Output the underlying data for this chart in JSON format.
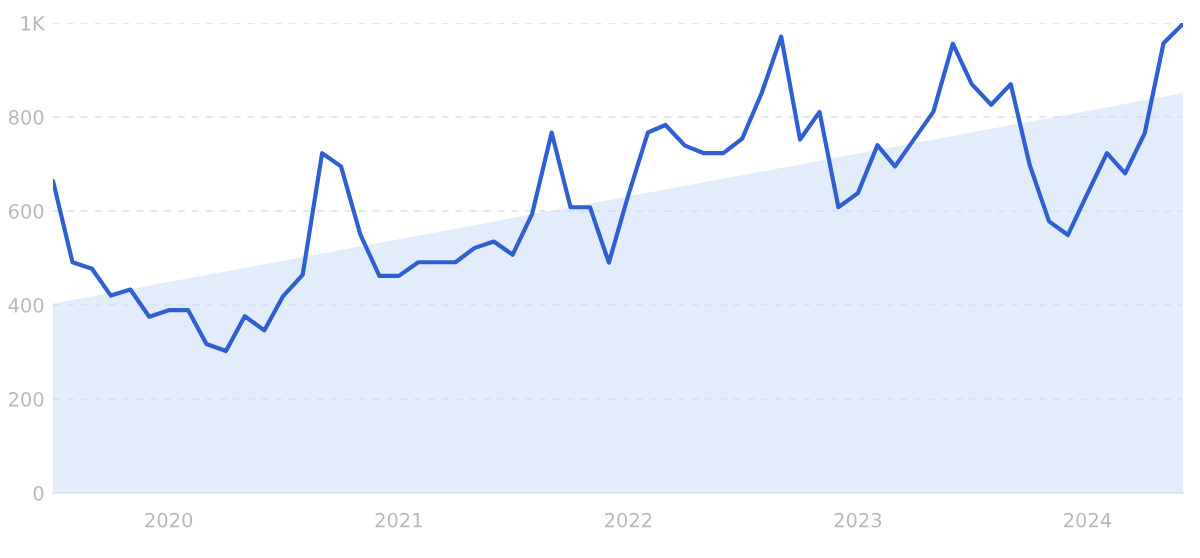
{
  "chart_data": {
    "type": "line",
    "x": [
      "2019-07",
      "2019-08",
      "2019-09",
      "2019-10",
      "2019-11",
      "2019-12",
      "2020-01",
      "2020-02",
      "2020-03",
      "2020-04",
      "2020-05",
      "2020-06",
      "2020-07",
      "2020-08",
      "2020-09",
      "2020-10",
      "2020-11",
      "2020-12",
      "2021-01",
      "2021-02",
      "2021-03",
      "2021-04",
      "2021-05",
      "2021-06",
      "2021-07",
      "2021-08",
      "2021-09",
      "2021-10",
      "2021-11",
      "2021-12",
      "2022-01",
      "2022-02",
      "2022-03",
      "2022-04",
      "2022-05",
      "2022-06",
      "2022-07",
      "2022-08",
      "2022-09",
      "2022-10",
      "2022-11",
      "2022-12",
      "2023-01",
      "2023-02",
      "2023-03",
      "2023-04",
      "2023-05",
      "2023-06",
      "2023-07",
      "2023-08",
      "2023-09",
      "2023-10",
      "2023-11",
      "2023-12",
      "2024-01",
      "2024-02",
      "2024-03",
      "2024-04",
      "2024-05",
      "2024-06"
    ],
    "series": [
      {
        "type": "area",
        "color": "#dde9fa",
        "x": [
          "2019-07",
          "2024-06"
        ],
        "values": [
          403,
          851
        ]
      },
      {
        "color": "#2f5fd1",
        "values": [
          664,
          491,
          477,
          420,
          433,
          375,
          389,
          389,
          317,
          302,
          376,
          346,
          419,
          464,
          723,
          695,
          549,
          462,
          462,
          491,
          491,
          491,
          521,
          535,
          507,
          594,
          767,
          608,
          608,
          490,
          634,
          767,
          783,
          739,
          723,
          723,
          754,
          851,
          971,
          752,
          811,
          608,
          638,
          740,
          695,
          754,
          811,
          956,
          870,
          826,
          870,
          699,
          578,
          549,
          637,
          723,
          680,
          765,
          957,
          998
        ]
      }
    ],
    "xlim": [
      "2019-07",
      "2024-06"
    ],
    "xticks": [
      "2020",
      "2021",
      "2022",
      "2023",
      "2024"
    ],
    "ylim": [
      0,
      1000
    ],
    "yticks": [
      0,
      200,
      400,
      600,
      800,
      {
        "value": 1000,
        "label": "1K"
      }
    ],
    "grid": "y",
    "line_style": "solid",
    "marker": "none"
  }
}
